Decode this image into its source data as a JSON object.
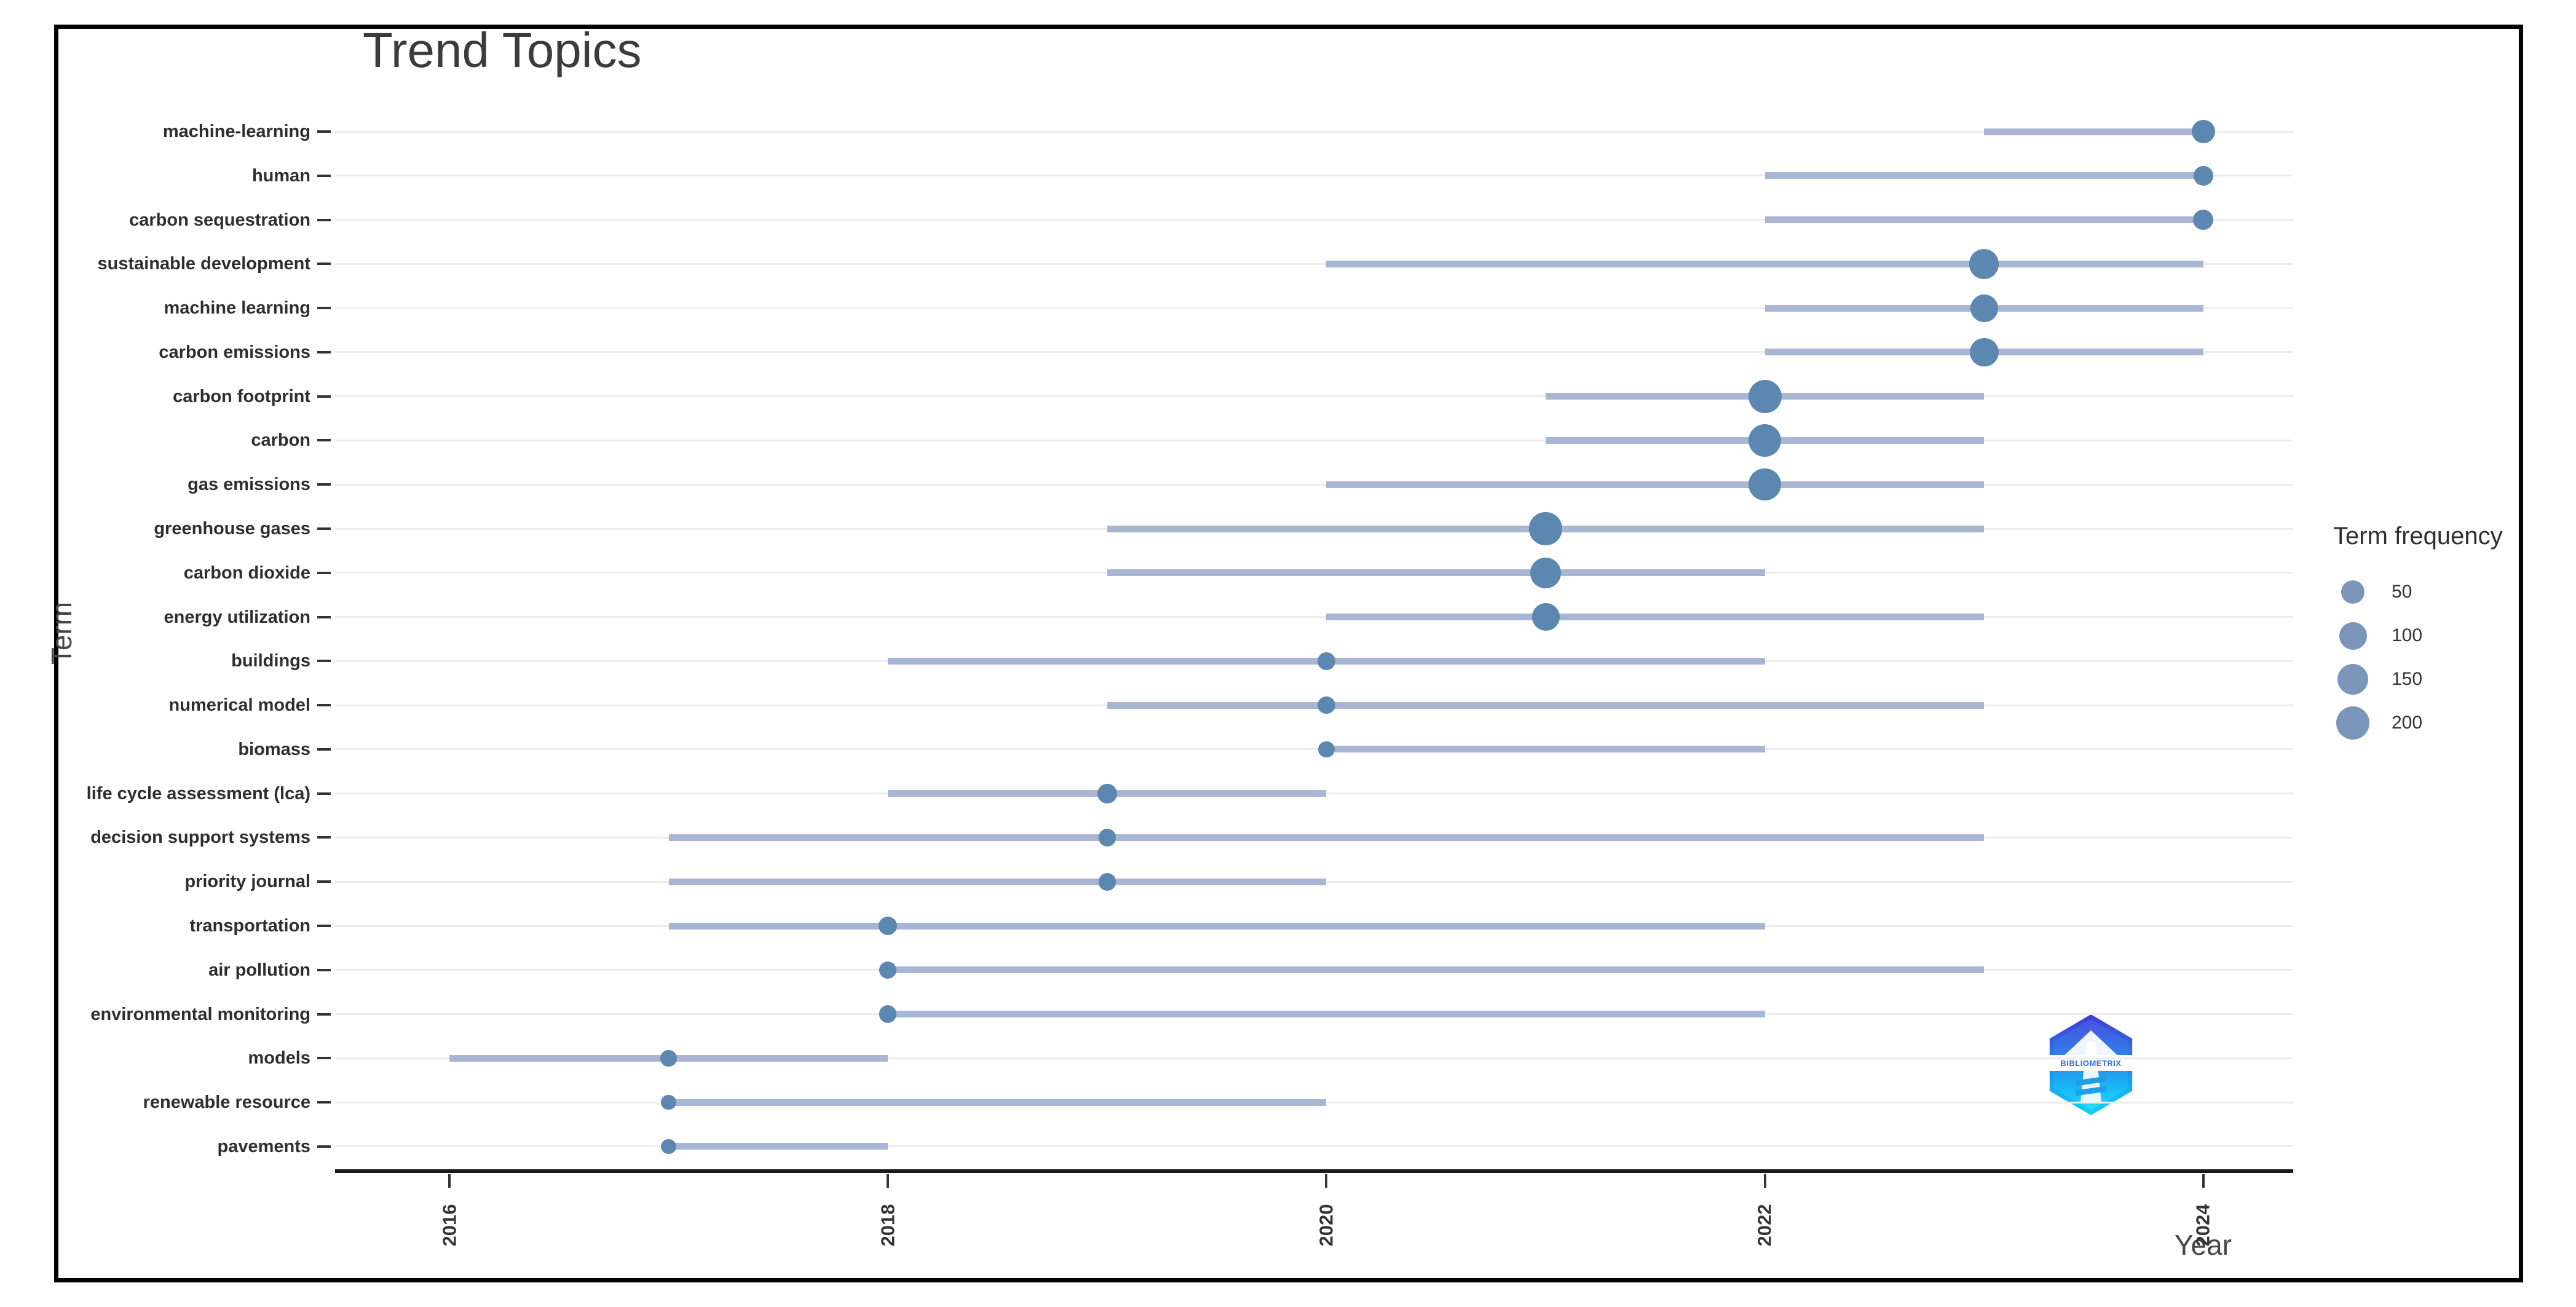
{
  "title": "Trend Topics",
  "axes": {
    "x_label": "Year",
    "y_label": "Term",
    "x_ticks": [
      "2016",
      "2018",
      "2020",
      "2022",
      "2024"
    ]
  },
  "legend": {
    "title": "Term frequency",
    "sizes": [
      50,
      100,
      150,
      200
    ]
  },
  "logo": {
    "text": "BIBLIOMETRIX"
  },
  "colors": {
    "dot": "#5b87b0",
    "legend_dot": "#7b96ba",
    "range_line": "#a9b6d3",
    "grid_line": "#ececec",
    "axis_line": "#191919",
    "tick_text": "#333333",
    "title_text": "#3b3b3b"
  },
  "chart_data": {
    "type": "scatter",
    "subtype": "dot-range-timeline",
    "title": "Trend Topics",
    "xlabel": "Year",
    "ylabel": "Term",
    "x_ticks": [
      2016,
      2018,
      2020,
      2022,
      2024
    ],
    "x_range": [
      2015.5,
      2024.4
    ],
    "grid": "horizontal-only",
    "legend_position": "right",
    "size_legend": {
      "title": "Term frequency",
      "values": [
        50,
        100,
        150,
        200
      ]
    },
    "terms": [
      {
        "term": "machine-learning",
        "year_start": 2023,
        "year_peak": 2024,
        "year_end": 2024,
        "frequency": 50
      },
      {
        "term": "human",
        "year_start": 2022,
        "year_peak": 2024,
        "year_end": 2024,
        "frequency": 20
      },
      {
        "term": "carbon sequestration",
        "year_start": 2022,
        "year_peak": 2024,
        "year_end": 2024,
        "frequency": 25
      },
      {
        "term": "sustainable development",
        "year_start": 2020,
        "year_peak": 2023,
        "year_end": 2024,
        "frequency": 130
      },
      {
        "term": "machine learning",
        "year_start": 2022,
        "year_peak": 2023,
        "year_end": 2024,
        "frequency": 100
      },
      {
        "term": "carbon emissions",
        "year_start": 2022,
        "year_peak": 2023,
        "year_end": 2024,
        "frequency": 115
      },
      {
        "term": "carbon footprint",
        "year_start": 2021,
        "year_peak": 2022,
        "year_end": 2023,
        "frequency": 190
      },
      {
        "term": "carbon",
        "year_start": 2021,
        "year_peak": 2022,
        "year_end": 2023,
        "frequency": 185
      },
      {
        "term": "gas emissions",
        "year_start": 2020,
        "year_peak": 2022,
        "year_end": 2023,
        "frequency": 170
      },
      {
        "term": "greenhouse gases",
        "year_start": 2019,
        "year_peak": 2021,
        "year_end": 2023,
        "frequency": 180
      },
      {
        "term": "carbon dioxide",
        "year_start": 2019,
        "year_peak": 2021,
        "year_end": 2022,
        "frequency": 145
      },
      {
        "term": "energy utilization",
        "year_start": 2020,
        "year_peak": 2021,
        "year_end": 2023,
        "frequency": 100
      },
      {
        "term": "buildings",
        "year_start": 2018,
        "year_peak": 2020,
        "year_end": 2022,
        "frequency": 12
      },
      {
        "term": "numerical model",
        "year_start": 2019,
        "year_peak": 2020,
        "year_end": 2023,
        "frequency": 10
      },
      {
        "term": "biomass",
        "year_start": 2020,
        "year_peak": 2020,
        "year_end": 2022,
        "frequency": 5
      },
      {
        "term": "life cycle assessment (lca)",
        "year_start": 2018,
        "year_peak": 2019,
        "year_end": 2020,
        "frequency": 20
      },
      {
        "term": "decision support systems",
        "year_start": 2017,
        "year_peak": 2019,
        "year_end": 2023,
        "frequency": 10
      },
      {
        "term": "priority journal",
        "year_start": 2017,
        "year_peak": 2019,
        "year_end": 2020,
        "frequency": 10
      },
      {
        "term": "transportation",
        "year_start": 2017,
        "year_peak": 2018,
        "year_end": 2022,
        "frequency": 15
      },
      {
        "term": "air pollution",
        "year_start": 2018,
        "year_peak": 2018,
        "year_end": 2023,
        "frequency": 10
      },
      {
        "term": "environmental monitoring",
        "year_start": 2018,
        "year_peak": 2018,
        "year_end": 2022,
        "frequency": 10
      },
      {
        "term": "models",
        "year_start": 2016,
        "year_peak": 2017,
        "year_end": 2018,
        "frequency": 5
      },
      {
        "term": "renewable resource",
        "year_start": 2017,
        "year_peak": 2017,
        "year_end": 2020,
        "frequency": 2
      },
      {
        "term": "pavements",
        "year_start": 2017,
        "year_peak": 2017,
        "year_end": 2018,
        "frequency": 2
      }
    ]
  }
}
